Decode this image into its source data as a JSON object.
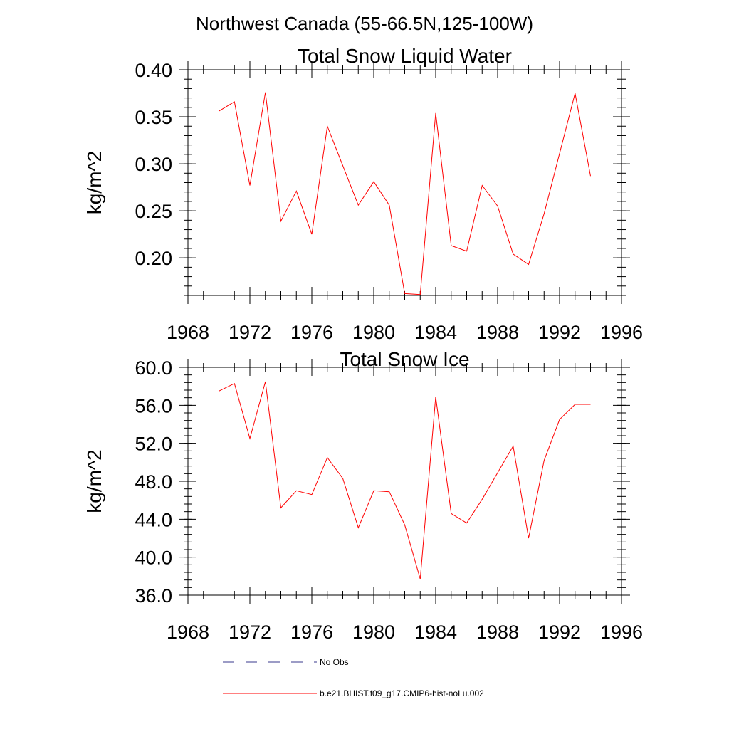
{
  "figure_title": "Northwest Canada (55-66.5N,125-100W)",
  "colors": {
    "model": "#ff0000",
    "obs": "#3a3a8c",
    "axis": "#000000"
  },
  "legend": {
    "items": [
      {
        "label": "No Obs",
        "style": "dashed"
      },
      {
        "label": "b.e21.BHIST.f09_g17.CMIP6-hist-noLu.002",
        "style": "solid"
      }
    ]
  },
  "chart_data": [
    {
      "type": "line",
      "title": "Total Snow Liquid Water",
      "xlabel": "",
      "ylabel": "kg/m^2",
      "xlim": [
        1968,
        1996
      ],
      "ylim": [
        0.16,
        0.4
      ],
      "xticks": [
        1968,
        1972,
        1976,
        1980,
        1984,
        1988,
        1992,
        1996
      ],
      "yticks": [
        0.2,
        0.25,
        0.3,
        0.35,
        0.4
      ],
      "ytick_labels": [
        "0.20",
        "0.25",
        "0.30",
        "0.35",
        "0.40"
      ],
      "grid": false,
      "x": [
        1970,
        1971,
        1972,
        1973,
        1974,
        1975,
        1976,
        1977,
        1978,
        1979,
        1980,
        1981,
        1982,
        1983,
        1984,
        1985,
        1986,
        1987,
        1988,
        1989,
        1990,
        1991,
        1992,
        1993,
        1994
      ],
      "series": [
        {
          "values": [
            0.356,
            0.366,
            0.277,
            0.376,
            0.239,
            0.271,
            0.225,
            0.34,
            0.298,
            0.256,
            0.281,
            0.256,
            0.162,
            0.161,
            0.354,
            0.213,
            0.207,
            0.277,
            0.255,
            0.204,
            0.193,
            0.247,
            0.311,
            0.375,
            0.287
          ]
        }
      ]
    },
    {
      "type": "line",
      "title": "Total Snow Ice",
      "xlabel": "",
      "ylabel": "kg/m^2",
      "xlim": [
        1968,
        1996
      ],
      "ylim": [
        36.0,
        60.0
      ],
      "xticks": [
        1968,
        1972,
        1976,
        1980,
        1984,
        1988,
        1992,
        1996
      ],
      "yticks": [
        36.0,
        40.0,
        44.0,
        48.0,
        52.0,
        56.0,
        60.0
      ],
      "ytick_labels": [
        "36.0",
        "40.0",
        "44.0",
        "48.0",
        "52.0",
        "56.0",
        "60.0"
      ],
      "grid": false,
      "x": [
        1970,
        1971,
        1972,
        1973,
        1974,
        1975,
        1976,
        1977,
        1978,
        1979,
        1980,
        1981,
        1982,
        1983,
        1984,
        1985,
        1986,
        1987,
        1988,
        1989,
        1990,
        1991,
        1992,
        1993,
        1994
      ],
      "series": [
        {
          "values": [
            57.5,
            58.3,
            52.5,
            58.5,
            45.2,
            47.0,
            46.6,
            50.5,
            48.3,
            43.1,
            47.0,
            46.9,
            43.4,
            37.7,
            56.9,
            44.6,
            43.6,
            46.1,
            48.9,
            51.7,
            42.0,
            50.2,
            54.5,
            56.1,
            56.1
          ]
        }
      ]
    }
  ]
}
